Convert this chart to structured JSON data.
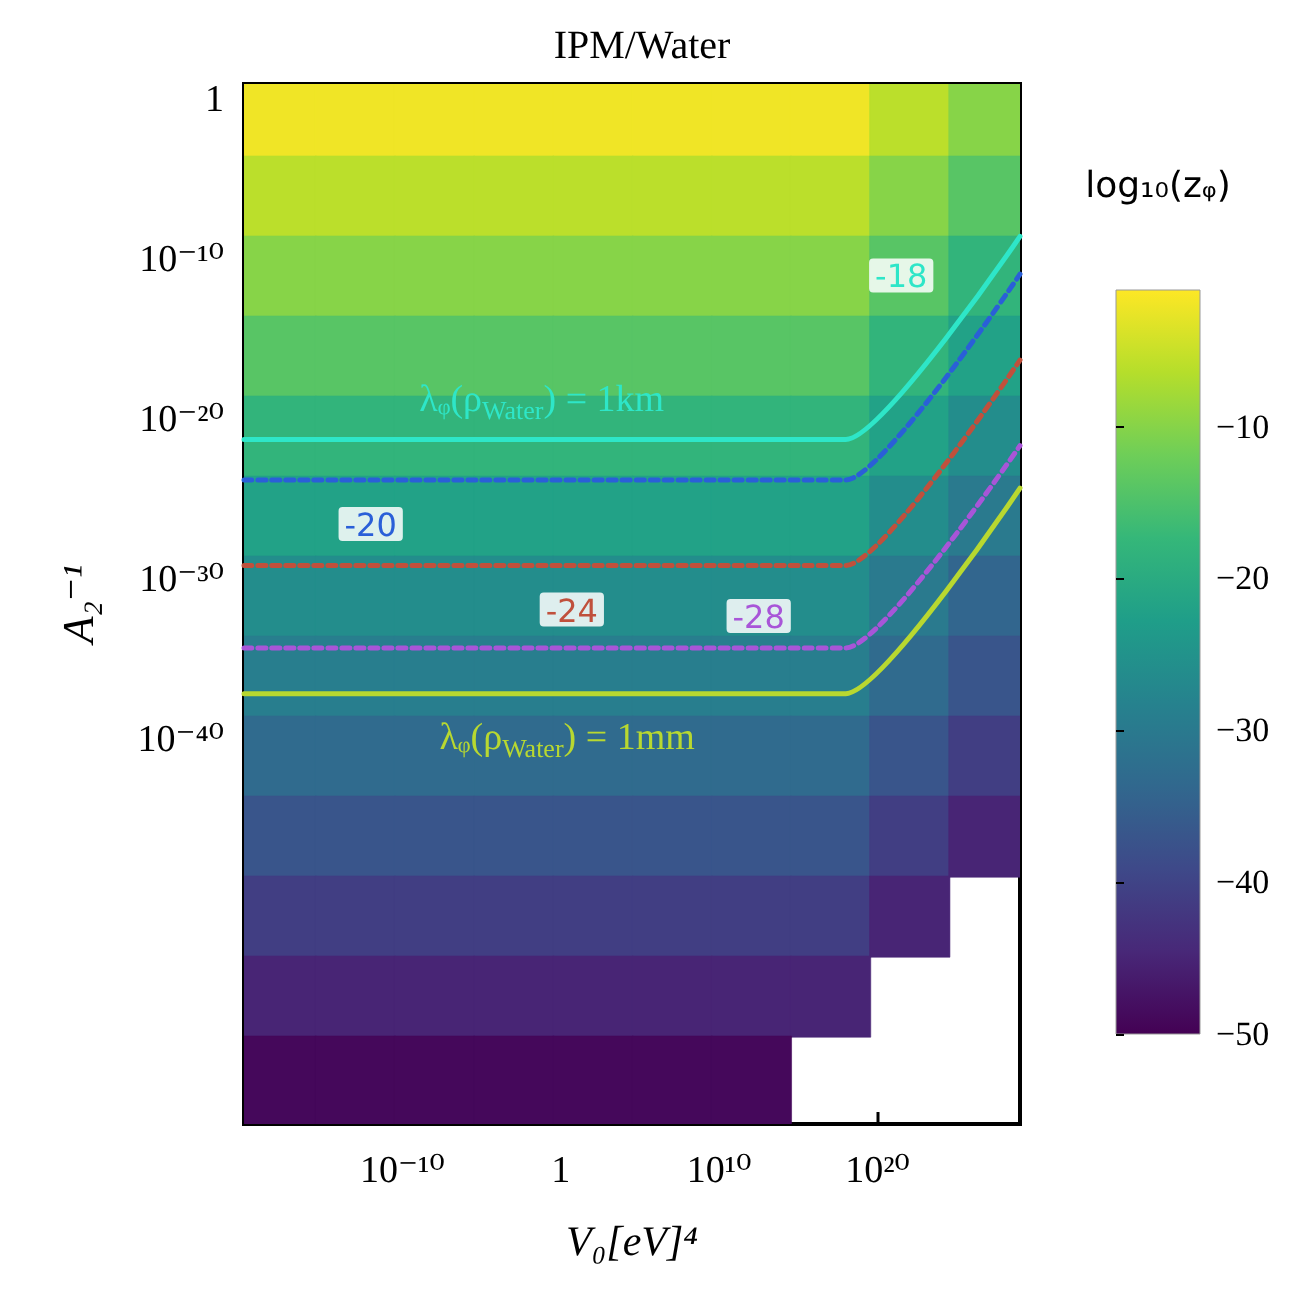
{
  "chart_data": {
    "type": "heatmap",
    "title": "IPM/Water",
    "xlabel": "V₀[eV]⁴",
    "ylabel": "A₂⁻¹",
    "clabel": "log₁₀(zᵩ)",
    "log": "xy",
    "xlim": [
      1e-20,
      1e+29
    ],
    "ylim": [
      1e-64,
      10
    ],
    "xticks": [
      {
        "value": 1e-10,
        "label": "10⁻¹⁰"
      },
      1,
      {
        "value": 10000000000.0,
        "label": "10¹⁰"
      },
      {
        "value": 1e+20,
        "label": "10²⁰"
      }
    ],
    "yticks": [
      1,
      {
        "value": 1e-10,
        "label": "10⁻¹⁰"
      },
      {
        "value": 1e-20,
        "label": "10⁻²⁰"
      },
      {
        "value": 1e-30,
        "label": "10⁻³⁰"
      },
      {
        "value": 1e-40,
        "label": "10⁻⁴⁰"
      }
    ],
    "x": [
      1e-18,
      1e-13,
      1e-08,
      0.001,
      100,
      10000000.0,
      1000000000000.0,
      1e+17,
      1e+22,
      1e+27
    ],
    "y": [
      0.1,
      1e-06,
      1e-11,
      1e-16,
      1e-21,
      1e-26,
      1e-31,
      1e-36,
      1e-41,
      1e-46,
      1e-51,
      1e-56,
      1e-61
    ],
    "cells": [
      [
        -2,
        -2,
        -2,
        -2,
        -2,
        -2,
        -2,
        -2,
        -6,
        -10
      ],
      [
        -6,
        -6,
        -6,
        -6,
        -6,
        -6,
        -6,
        -6,
        -10,
        -14
      ],
      [
        -10,
        -10,
        -10,
        -10,
        -10,
        -10,
        -10,
        -10,
        -14,
        -18
      ],
      [
        -14,
        -14,
        -14,
        -14,
        -14,
        -14,
        -14,
        -14,
        -18,
        -22
      ],
      [
        -18,
        -18,
        -18,
        -18,
        -18,
        -18,
        -18,
        -18,
        -22,
        -26
      ],
      [
        -22,
        -22,
        -22,
        -22,
        -22,
        -22,
        -22,
        -22,
        -26,
        -30
      ],
      [
        -26,
        -26,
        -26,
        -26,
        -26,
        -26,
        -26,
        -26,
        -30,
        -34
      ],
      [
        -29,
        -29,
        -29,
        -29,
        -29,
        -29,
        -29,
        -29,
        -33,
        -37
      ],
      [
        -33,
        -33,
        -33,
        -33,
        -33,
        -33,
        -33,
        -33,
        -37,
        -41
      ],
      [
        -37,
        -37,
        -37,
        -37,
        -37,
        -37,
        -37,
        -37,
        -41,
        -45
      ],
      [
        -41,
        -41,
        -41,
        -41,
        -41,
        -41,
        -41,
        -41,
        -45,
        null
      ],
      [
        -45,
        -45,
        -45,
        -45,
        -45,
        -45,
        -45,
        -45,
        null,
        null
      ],
      [
        -49,
        -49,
        -49,
        -49,
        -49,
        -49,
        -49,
        null,
        null,
        null
      ]
    ],
    "clim": [
      -50,
      -1
    ],
    "cticks": [
      -10,
      -20,
      -30,
      -40,
      -50
    ],
    "series": [
      {
        "type": "line",
        "name": "λᵩ(ρ$_{Water}$) = 1km",
        "color": "#2ee6c8",
        "line_style": "solid",
        "x": [
          1e-20,
          1e+18,
          1e+29
        ],
        "values": [
          6e-22,
          6e-22,
          3e-09
        ]
      },
      {
        "type": "line",
        "name": "-20",
        "color": "#2a5fd8",
        "line_style": "dashed",
        "x": [
          1e-20,
          1e+18,
          1e+29
        ],
        "values": [
          1.8e-24,
          1.8e-24,
          1.3e-11
        ]
      },
      {
        "type": "line",
        "name": "-24",
        "color": "#c0503c",
        "line_style": "dashed",
        "x": [
          1e-20,
          1e+18,
          1e+29
        ],
        "values": [
          8e-30,
          8e-30,
          5.6e-17
        ]
      },
      {
        "type": "line",
        "name": "-28",
        "color": "#a855d8",
        "line_style": "dashed",
        "x": [
          1e-20,
          1e+18,
          1e+29
        ],
        "values": [
          5.6e-35,
          5.6e-35,
          2.5e-22
        ]
      },
      {
        "type": "line",
        "name": "λᵩ(ρ$_{Water}$) = 1mm",
        "color": "#b8d830",
        "line_style": "solid",
        "x": [
          1e-20,
          1e+18,
          1e+29
        ],
        "values": [
          7.9e-38,
          7.9e-38,
          5.6e-25
        ]
      }
    ],
    "annotations": [
      "-18"
    ]
  }
}
